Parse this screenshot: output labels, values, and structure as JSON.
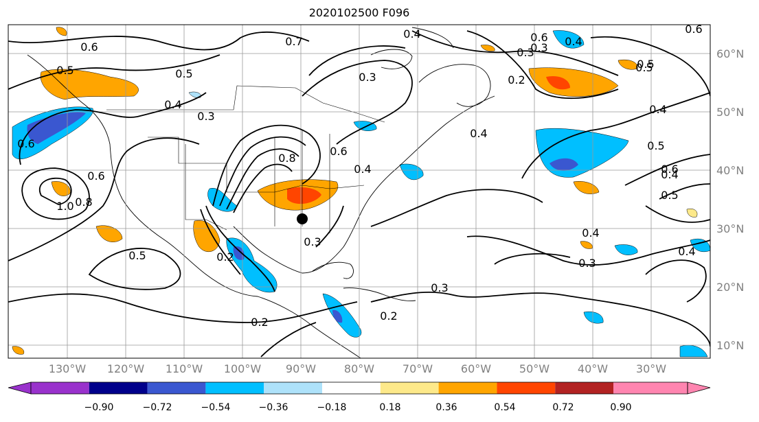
{
  "title": "2020102500 F096",
  "map": {
    "lon_labels": [
      "130°W",
      "120°W",
      "110°W",
      "100°W",
      "90°W",
      "80°W",
      "70°W",
      "60°W",
      "50°W",
      "40°W",
      "30°W"
    ],
    "lat_labels": [
      "60°N",
      "50°N",
      "40°N",
      "30°N",
      "20°N",
      "10°N"
    ]
  },
  "colorbar": {
    "ticks": [
      "−0.90",
      "−0.72",
      "−0.54",
      "−0.36",
      "−0.18",
      "0.18",
      "0.36",
      "0.54",
      "0.72",
      "0.90"
    ],
    "colors": [
      "#9932cc",
      "#00008b",
      "#3a57d0",
      "#00bfff",
      "#aee2fa",
      "#ffffff",
      "#fde98a",
      "#ffa500",
      "#ff4500",
      "#b22222",
      "#ff85b0"
    ]
  },
  "contour_labels": [
    "0.7",
    "0.4",
    "0.5",
    "0.5",
    "0.6",
    "0.3",
    "0.3",
    "0.2",
    "0.4",
    "0.5",
    "0.6",
    "0.5",
    "0.4",
    "0.3",
    "0.4",
    "0.4",
    "0.5",
    "0.6",
    "0.5",
    "0.4",
    "0.8",
    "0.6",
    "0.4",
    "0.6",
    "0.6",
    "1.0",
    "0.8",
    "0.5",
    "0.2",
    "0.3",
    "0.3",
    "0.4",
    "0.3",
    "0.2",
    "0.2",
    "0.3",
    "0.4",
    "0.6"
  ],
  "marker": "black-dot"
}
